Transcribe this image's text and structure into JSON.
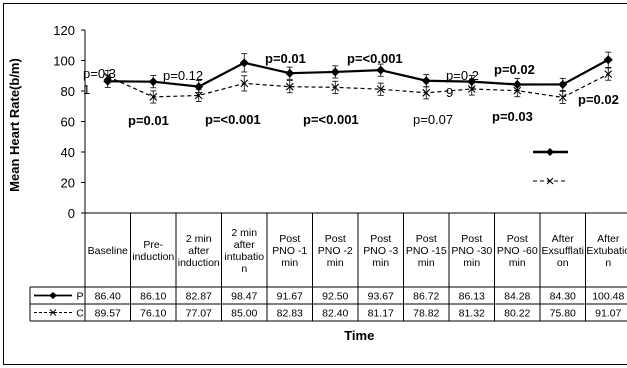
{
  "chart_data": {
    "type": "line",
    "ylabel": "Mean Heart Rate(b/m)",
    "xlabel": "Time",
    "ylim": [
      0,
      120
    ],
    "yticks": [
      "0",
      "20",
      "40",
      "60",
      "80",
      "100",
      "120"
    ],
    "categories": [
      "Baseline",
      "Pre-\ninduction",
      "2 min\nafter\ninduction",
      "2 min\nafter\nintubatio\nn",
      "Post\nPNO -1\nmin",
      "Post\nPNO -2\nmin",
      "Post\nPNO -3\nmin",
      "Post\nPNO -15\nmin",
      "Post\nPNO -30\nmin",
      "Post\nPNO -60\nmin",
      "After\nExsufflati\non",
      "After\nExtubatio\nn"
    ],
    "series": [
      {
        "name": "P",
        "color": "#000000",
        "marker": "diamond",
        "dash": "solid",
        "values": [
          86.4,
          86.1,
          82.87,
          98.47,
          91.67,
          92.5,
          93.67,
          86.72,
          86.13,
          84.28,
          84.3,
          100.48
        ],
        "table_values": [
          "86.40",
          "86.10",
          "82.87",
          "98.47",
          "91.67",
          "92.50",
          "93.67",
          "86.72",
          "86.13",
          "84.28",
          "84.30",
          "100.48"
        ],
        "errors": [
          4,
          4,
          4,
          6,
          4,
          4,
          4,
          4,
          4,
          4,
          4,
          5
        ]
      },
      {
        "name": "C",
        "color": "#000000",
        "marker": "x",
        "dash": "dashed",
        "values": [
          89.57,
          76.1,
          77.07,
          85.0,
          82.83,
          82.4,
          81.17,
          78.82,
          81.32,
          80.22,
          75.8,
          91.07
        ],
        "table_values": [
          "89.57",
          "76.10",
          "77.07",
          "85.00",
          "82.83",
          "82.40",
          "81.17",
          "78.82",
          "81.32",
          "80.22",
          "75.80",
          "91.07"
        ],
        "errors": [
          4,
          4,
          4,
          5,
          4,
          4,
          4,
          4,
          4,
          4,
          4,
          4
        ]
      }
    ],
    "annotations": [
      {
        "text": "p=0.3",
        "bold": false
      },
      {
        "text": "1",
        "bold": false
      },
      {
        "text": "p=0.01",
        "bold": true
      },
      {
        "text": "p=0.12",
        "bold": false
      },
      {
        "text": "p=<0.001",
        "bold": true
      },
      {
        "text": "p=0.01",
        "bold": true
      },
      {
        "text": "p=<0.001",
        "bold": true
      },
      {
        "text": "p=<0.001",
        "bold": true
      },
      {
        "text": "p=0.07",
        "bold": false
      },
      {
        "text": "p=0.2",
        "bold": false
      },
      {
        "text": "9",
        "bold": false
      },
      {
        "text": "p=0.02",
        "bold": true
      },
      {
        "text": "p=0.03",
        "bold": true
      },
      {
        "text": "p=0.02",
        "bold": true
      }
    ],
    "grid": false,
    "legend": "right"
  }
}
